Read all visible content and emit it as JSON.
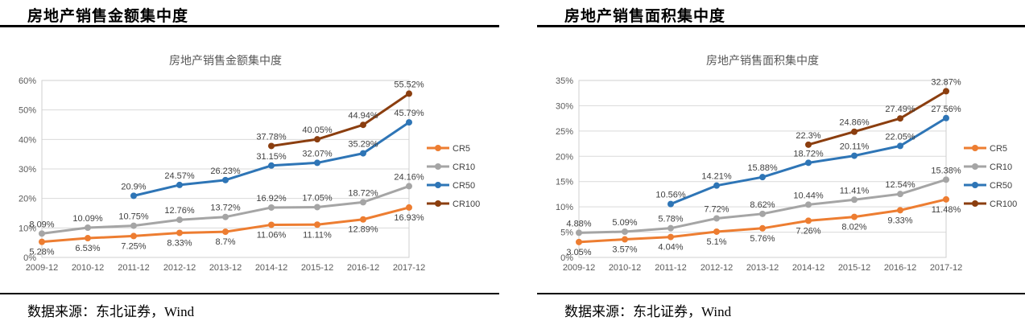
{
  "panels": [
    {
      "header": "房地产销售金额集中度",
      "footer": "数据来源：东北证券，Wind"
    },
    {
      "header": "房地产销售面积集中度",
      "footer": "数据来源：东北证券，Wind"
    }
  ],
  "colors": {
    "cr5": "#ED7D31",
    "cr10": "#A5A5A5",
    "cr50": "#2E75B6",
    "cr100": "#8B3E0F",
    "grid": "#D9D9D9",
    "plot_border": "#CFCFCF",
    "axis_text": "#595959",
    "label_text": "#404040",
    "title_text": "#595959",
    "rule": "#000000"
  },
  "chart_data": [
    {
      "type": "line",
      "title": "房地产销售金额集中度",
      "categories": [
        "2009-12",
        "2010-12",
        "2011-12",
        "2012-12",
        "2013-12",
        "2014-12",
        "2015-12",
        "2016-12",
        "2017-12"
      ],
      "series": [
        {
          "name": "CR5",
          "color": "#ED7D31",
          "label_side": "below",
          "values": [
            5.28,
            6.53,
            7.25,
            8.33,
            8.7,
            11.06,
            11.11,
            12.89,
            16.93
          ]
        },
        {
          "name": "CR10",
          "color": "#A5A5A5",
          "label_side": "above",
          "values": [
            8.09,
            10.09,
            10.75,
            12.76,
            13.72,
            16.92,
            17.05,
            18.72,
            24.16
          ]
        },
        {
          "name": "CR50",
          "color": "#2E75B6",
          "label_side": "above",
          "values": [
            null,
            null,
            20.9,
            24.57,
            26.23,
            31.15,
            32.07,
            35.29,
            45.79
          ]
        },
        {
          "name": "CR100",
          "color": "#8B3E0F",
          "label_side": "above",
          "values": [
            null,
            null,
            null,
            null,
            null,
            37.78,
            40.05,
            44.94,
            55.52
          ]
        }
      ],
      "ylim": [
        0,
        60
      ],
      "yticks": [
        "0%",
        "10%",
        "20%",
        "30%",
        "40%",
        "50%",
        "60%"
      ],
      "grid": true,
      "legend_position": "right",
      "legend": [
        "CR5",
        "CR10",
        "CR50",
        "CR100"
      ]
    },
    {
      "type": "line",
      "title": "房地产销售面积集中度",
      "categories": [
        "2009-12",
        "2010-12",
        "2011-12",
        "2012-12",
        "2013-12",
        "2014-12",
        "2015-12",
        "2016-12",
        "2017-12"
      ],
      "series": [
        {
          "name": "CR5",
          "color": "#ED7D31",
          "label_side": "below",
          "values": [
            3.05,
            3.57,
            4.04,
            5.1,
            5.76,
            7.26,
            8.02,
            9.33,
            11.48
          ]
        },
        {
          "name": "CR10",
          "color": "#A5A5A5",
          "label_side": "above",
          "values": [
            4.88,
            5.09,
            5.78,
            7.72,
            8.62,
            10.44,
            11.41,
            12.54,
            15.38
          ]
        },
        {
          "name": "CR50",
          "color": "#2E75B6",
          "label_side": "above",
          "values": [
            null,
            null,
            10.56,
            14.21,
            15.88,
            18.72,
            20.11,
            22.05,
            27.56
          ]
        },
        {
          "name": "CR100",
          "color": "#8B3E0F",
          "label_side": "above",
          "values": [
            null,
            null,
            null,
            null,
            null,
            22.3,
            24.86,
            27.49,
            32.87
          ]
        }
      ],
      "ylim": [
        0,
        35
      ],
      "yticks": [
        "0%",
        "5%",
        "10%",
        "15%",
        "20%",
        "25%",
        "30%",
        "35%"
      ],
      "grid": true,
      "legend_position": "right",
      "legend": [
        "CR5",
        "CR10",
        "CR50",
        "CR100"
      ]
    }
  ]
}
